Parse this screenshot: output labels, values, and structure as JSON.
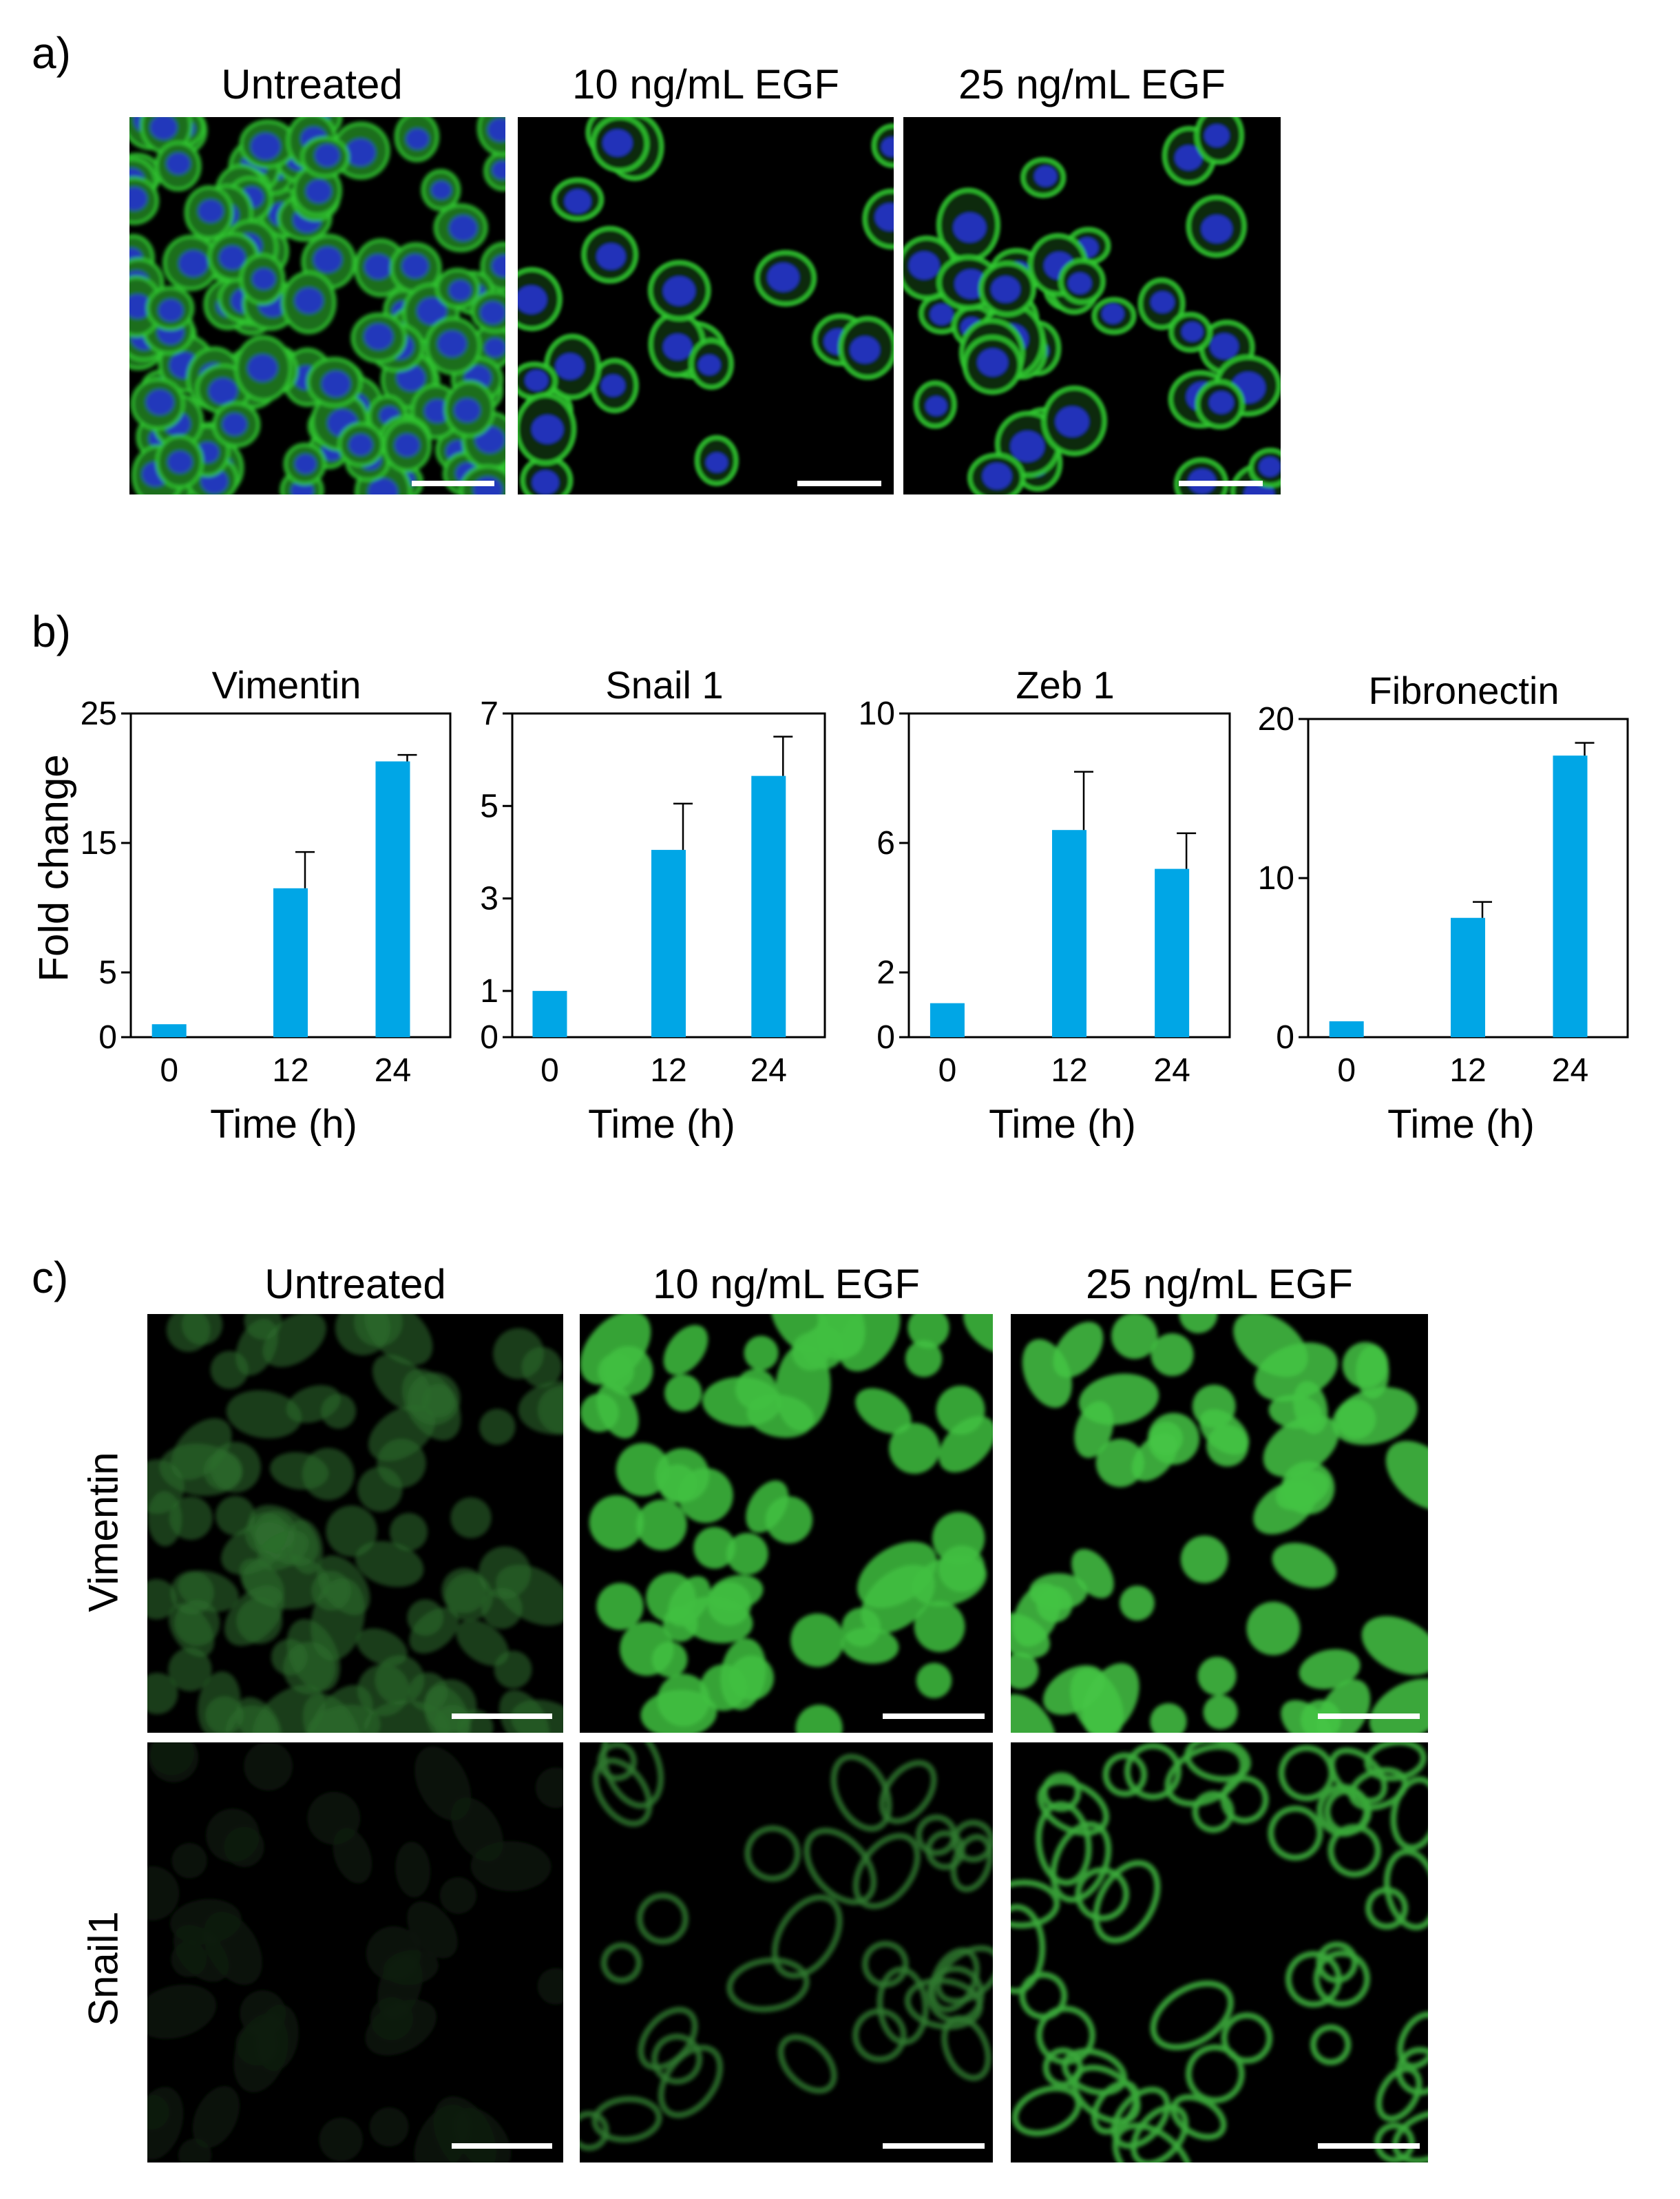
{
  "panel_a": {
    "letter": "a)",
    "titles": [
      "Untreated",
      "10 ng/mL EGF",
      "25 ng/mL EGF"
    ]
  },
  "panel_b": {
    "letter": "b)",
    "ylabel": "Fold change",
    "xlabel": "Time (h)"
  },
  "panel_c": {
    "letter": "c)",
    "titles": [
      "Untreated",
      "10 ng/mL EGF",
      "25 ng/mL EGF"
    ],
    "rows": [
      "Vimentin",
      "Snail1"
    ]
  },
  "colors": {
    "bar": "#00a6e6",
    "membrane": "#33cc33",
    "nucleus": "#2233cc"
  },
  "chart_data": [
    {
      "type": "bar",
      "title": "Vimentin",
      "categories": [
        "0",
        "12",
        "24"
      ],
      "values": [
        1,
        11.5,
        21.3
      ],
      "errors": [
        0,
        2.8,
        0.5
      ],
      "ylim": [
        0,
        25
      ],
      "yticks": [
        0,
        5,
        15,
        25
      ],
      "xlabel": "Time (h)",
      "ylabel": "Fold change"
    },
    {
      "type": "bar",
      "title": "Snail 1",
      "categories": [
        "0",
        "12",
        "24"
      ],
      "values": [
        1,
        4.05,
        5.65
      ],
      "errors": [
        0,
        1.0,
        0.85
      ],
      "ylim": [
        0,
        7
      ],
      "yticks": [
        0,
        1,
        3,
        5,
        7
      ],
      "xlabel": "Time (h)",
      "ylabel": ""
    },
    {
      "type": "bar",
      "title": "Zeb 1",
      "categories": [
        "0",
        "12",
        "24"
      ],
      "values": [
        1.05,
        6.4,
        5.2
      ],
      "errors": [
        0,
        1.8,
        1.1
      ],
      "ylim": [
        0,
        10
      ],
      "yticks": [
        0,
        2,
        6,
        10
      ],
      "xlabel": "Time (h)",
      "ylabel": ""
    },
    {
      "type": "bar",
      "title": "Fibronectin",
      "categories": [
        "0",
        "12",
        "24"
      ],
      "values": [
        1,
        7.5,
        17.7
      ],
      "errors": [
        0,
        1.0,
        0.8
      ],
      "ylim": [
        0,
        20
      ],
      "yticks": [
        0,
        10,
        20
      ],
      "xlabel": "Time (h)",
      "ylabel": ""
    }
  ]
}
